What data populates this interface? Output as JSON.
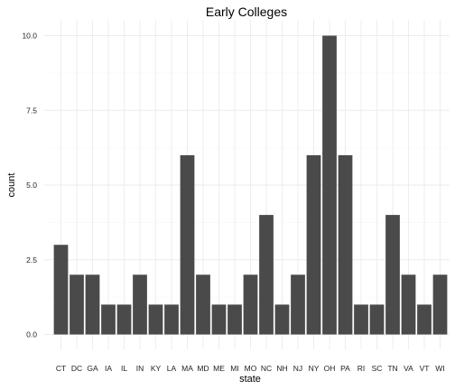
{
  "chart_data": {
    "type": "bar",
    "title": "Early Colleges",
    "xlabel": "state",
    "ylabel": "count",
    "categories": [
      "CT",
      "DC",
      "GA",
      "IA",
      "IL",
      "IN",
      "KY",
      "LA",
      "MA",
      "MD",
      "ME",
      "MI",
      "MO",
      "NC",
      "NH",
      "NJ",
      "NY",
      "OH",
      "PA",
      "RI",
      "SC",
      "TN",
      "VA",
      "VT",
      "WI"
    ],
    "values": [
      3,
      2,
      2,
      1,
      1,
      2,
      1,
      1,
      6,
      2,
      1,
      1,
      2,
      4,
      1,
      2,
      6,
      10,
      6,
      1,
      1,
      4,
      2,
      1,
      2
    ],
    "ylim": [
      0,
      10
    ],
    "yticks": [
      "0.0",
      "2.5",
      "5.0",
      "7.5",
      "10.0"
    ],
    "grid": true,
    "bar_color": "#4a4a4a"
  }
}
